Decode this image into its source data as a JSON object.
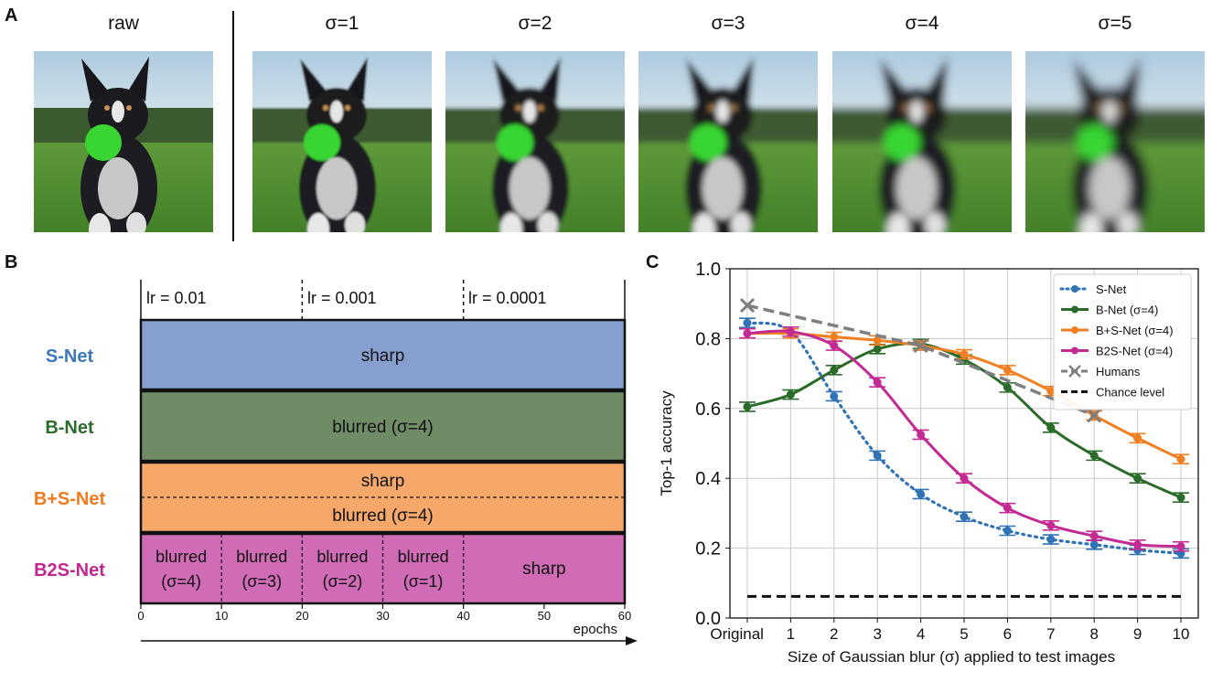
{
  "panel_a": {
    "letter": "A",
    "labels": [
      "raw",
      "σ=1",
      "σ=2",
      "σ=3",
      "σ=4",
      "σ=5"
    ],
    "blur_levels": [
      0,
      1,
      2,
      3,
      4,
      5
    ]
  },
  "panel_b": {
    "letter": "B",
    "lr_labels": [
      "lr = 0.01",
      "lr = 0.001",
      "lr = 0.0001"
    ],
    "rows": [
      {
        "name": "S-Net",
        "color": "#3d78b8",
        "fill": "#869fcf",
        "text": "sharp"
      },
      {
        "name": "B-Net",
        "color": "#2e6b2e",
        "fill": "#6f8c66",
        "text": "blurred (σ=4)"
      },
      {
        "name": "B+S-Net",
        "color": "#f07a1e",
        "fill": "#f6a86a",
        "text_top": "sharp",
        "text_bottom": "blurred (σ=4)"
      },
      {
        "name": "B2S-Net",
        "color": "#c2268f",
        "fill": "#d06bb6",
        "segments": [
          {
            "line1": "blurred",
            "line2": "(σ=4)"
          },
          {
            "line1": "blurred",
            "line2": "(σ=3)"
          },
          {
            "line1": "blurred",
            "line2": "(σ=2)"
          },
          {
            "line1": "blurred",
            "line2": "(σ=1)"
          },
          {
            "line1": "sharp",
            "line2": ""
          }
        ]
      }
    ],
    "ticks": [
      "0",
      "10",
      "20",
      "30",
      "40",
      "50",
      "60"
    ],
    "axis_label": "epochs"
  },
  "chart_data": {
    "letter": "C",
    "type": "line",
    "xlabel": "Size of Gaussian blur (σ) applied to test images",
    "ylabel": "Top-1 accuracy",
    "categories": [
      "Original",
      "1",
      "2",
      "3",
      "4",
      "5",
      "6",
      "7",
      "8",
      "9",
      "10"
    ],
    "x": [
      0,
      1,
      2,
      3,
      4,
      5,
      6,
      7,
      8,
      9,
      10
    ],
    "ylim": [
      0.0,
      1.0
    ],
    "yticks": [
      "0.0",
      "0.2",
      "0.4",
      "0.6",
      "0.8",
      "1.0"
    ],
    "grid": true,
    "legend_position": "top-right",
    "series": [
      {
        "name": "S-Net",
        "color": "#2f72b5",
        "style": "dotted",
        "values": [
          0.845,
          0.82,
          0.635,
          0.465,
          0.355,
          0.29,
          0.25,
          0.225,
          0.21,
          0.195,
          0.185
        ]
      },
      {
        "name": "B-Net (σ=4)",
        "color": "#2a6b2a",
        "style": "solid",
        "values": [
          0.605,
          0.64,
          0.71,
          0.77,
          0.785,
          0.74,
          0.66,
          0.545,
          0.465,
          0.4,
          0.345
        ]
      },
      {
        "name": "B+S-Net (σ=4)",
        "color": "#f07f22",
        "style": "solid",
        "values": [
          0.815,
          0.815,
          0.805,
          0.795,
          0.78,
          0.755,
          0.71,
          0.65,
          0.58,
          0.515,
          0.455
        ]
      },
      {
        "name": "B2S-Net (σ=4)",
        "color": "#c42a93",
        "style": "solid",
        "values": [
          0.815,
          0.82,
          0.78,
          0.675,
          0.525,
          0.4,
          0.315,
          0.265,
          0.235,
          0.21,
          0.205
        ]
      },
      {
        "name": "Humans",
        "color": "#7f7f7f",
        "style": "dashed",
        "marker": "x",
        "x_points": [
          0,
          4,
          8
        ],
        "values_points": [
          0.895,
          0.78,
          0.58
        ]
      },
      {
        "name": "Chance level",
        "color": "#111111",
        "style": "dashed",
        "constant": 0.062
      }
    ]
  }
}
